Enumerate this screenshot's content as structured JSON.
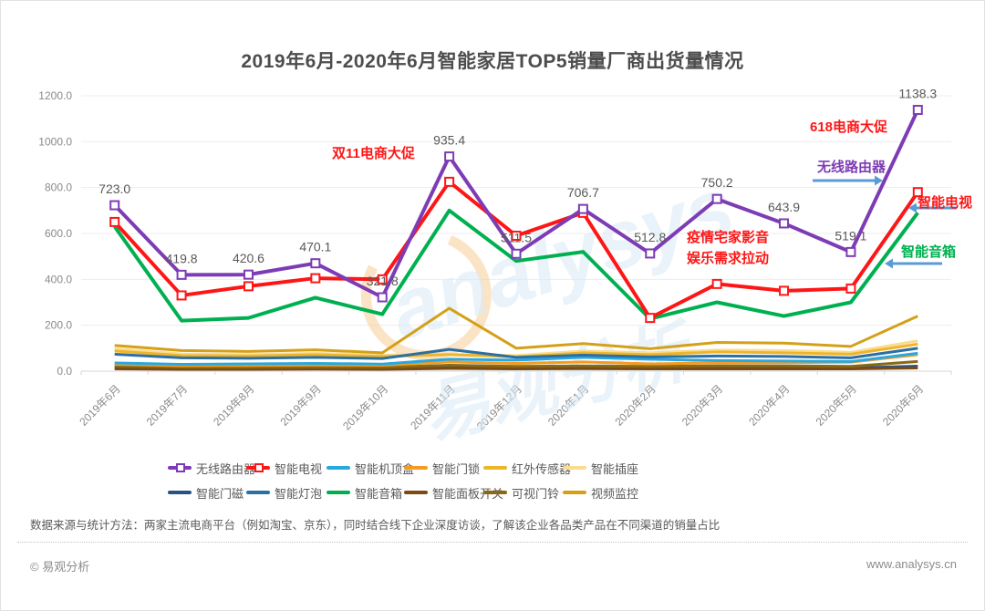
{
  "title": "2019年6月-2020年6月智能家居TOP5销量厂商出货量情况",
  "chart_data": {
    "type": "line",
    "x": [
      "2019年6月",
      "2019年7月",
      "2019年8月",
      "2019年9月",
      "2019年10月",
      "2019年11月",
      "2019年12月",
      "2020年1月",
      "2020年2月",
      "2020年3月",
      "2020年4月",
      "2020年5月",
      "2020年6月"
    ],
    "ylim": [
      0,
      1200
    ],
    "yticks": [
      0,
      200,
      400,
      600,
      800,
      1000,
      1200
    ],
    "grid": true,
    "legend_position": "bottom",
    "data_labels_series": "无线路由器",
    "series": [
      {
        "name": "无线路由器",
        "color": "#7d3cb5",
        "marker": "square",
        "labeled": true,
        "values": [
          723.0,
          419.8,
          420.6,
          470.1,
          321.8,
          935.4,
          511.5,
          706.7,
          512.8,
          750.2,
          643.9,
          519.1,
          1138.3
        ]
      },
      {
        "name": "智能电视",
        "color": "#fe1616",
        "marker": "square",
        "values": [
          650,
          330,
          370,
          405,
          400,
          825,
          590,
          690,
          232,
          380,
          350,
          360,
          780
        ]
      },
      {
        "name": "智能机顶盒",
        "color": "#29a8e0",
        "values": [
          36,
          30,
          32,
          34,
          31,
          52,
          48,
          60,
          52,
          46,
          44,
          42,
          78
        ]
      },
      {
        "name": "智能门锁",
        "color": "#f59b22",
        "values": [
          30,
          24,
          25,
          27,
          26,
          40,
          34,
          40,
          32,
          36,
          37,
          39,
          72
        ]
      },
      {
        "name": "红外传感器",
        "color": "#efb52a",
        "values": [
          88,
          68,
          66,
          72,
          64,
          72,
          62,
          80,
          72,
          84,
          80,
          74,
          118
        ]
      },
      {
        "name": "智能插座",
        "color": "#fbdc8f",
        "values": [
          98,
          75,
          72,
          78,
          70,
          74,
          68,
          88,
          80,
          92,
          90,
          82,
          132
        ]
      },
      {
        "name": "智能门磁",
        "color": "#2a5183",
        "values": [
          16,
          12,
          12,
          13,
          12,
          18,
          15,
          17,
          14,
          15,
          15,
          14,
          22
        ]
      },
      {
        "name": "智能灯泡",
        "color": "#2b6fa3",
        "values": [
          74,
          58,
          56,
          60,
          55,
          95,
          60,
          70,
          62,
          66,
          64,
          58,
          100
        ]
      },
      {
        "name": "智能音箱",
        "color": "#00b050",
        "values": [
          630,
          220,
          232,
          320,
          248,
          700,
          480,
          520,
          228,
          300,
          240,
          300,
          690
        ]
      },
      {
        "name": "智能面板开关",
        "color": "#7b4b12",
        "values": [
          10,
          8,
          8,
          9,
          8,
          12,
          10,
          11,
          10,
          10,
          10,
          10,
          14
        ]
      },
      {
        "name": "可视门铃",
        "color": "#8a6914",
        "values": [
          22,
          17,
          17,
          18,
          17,
          26,
          21,
          23,
          21,
          23,
          23,
          21,
          42
        ]
      },
      {
        "name": "视频监控",
        "color": "#d4a017",
        "values": [
          112,
          90,
          86,
          93,
          80,
          274,
          100,
          120,
          98,
          125,
          122,
          108,
          240
        ]
      }
    ]
  },
  "annotations": {
    "double11": "双11电商大促",
    "e618": "618电商大促",
    "covid_line1": "疫情宅家影音",
    "covid_line2": "娱乐需求拉动"
  },
  "callouts": {
    "router": "无线路由器",
    "tv": "智能电视",
    "speaker": "智能音箱"
  },
  "watermark": {
    "en": "analysys",
    "cn": "易观分析"
  },
  "footnote": "数据来源与统计方法：两家主流电商平台（例如淘宝、京东），同时结合线下企业深度访谈，了解该企业各品类产品在不同渠道的销量占比",
  "footer": {
    "copyright": "© 易观分析",
    "website": "www.analysys.cn"
  }
}
